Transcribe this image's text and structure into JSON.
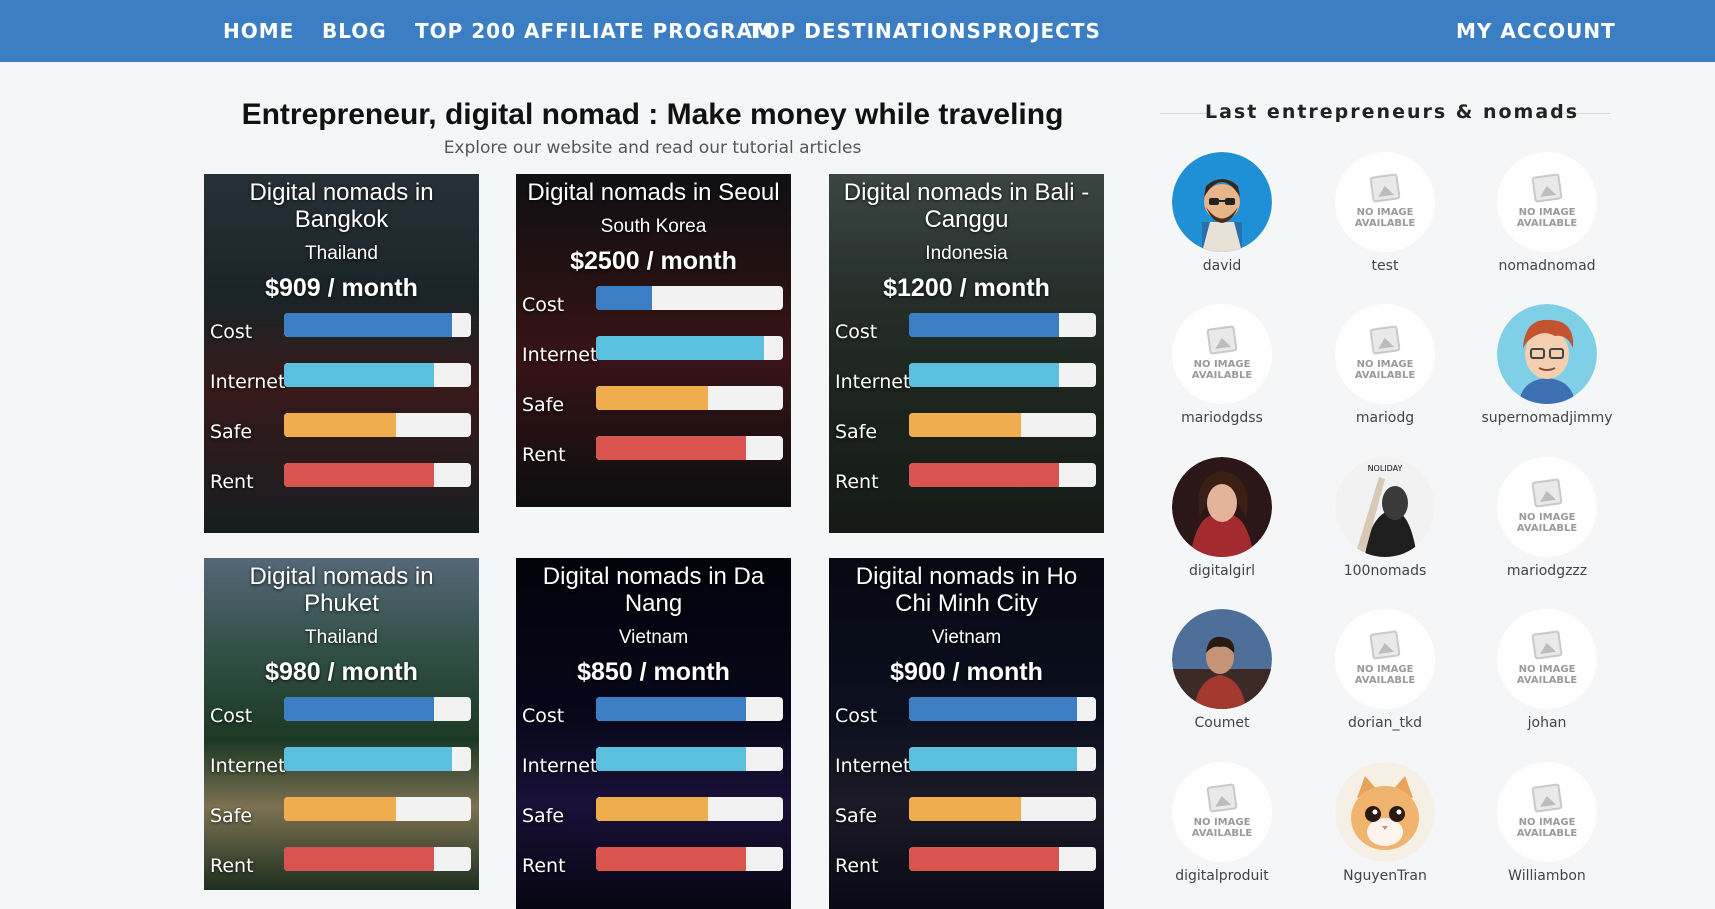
{
  "nav": {
    "items": [
      {
        "label": "HOME"
      },
      {
        "label": "BLOG"
      },
      {
        "label": "TOP 200 AFFILIATE PROGRAM"
      },
      {
        "label": "TOP DESTINATIONS"
      },
      {
        "label": "PROJECTS"
      }
    ],
    "account": "MY ACCOUNT"
  },
  "main": {
    "title": "Entrepreneur, digital nomad : Make money while traveling",
    "subtitle": "Explore our website and read our tutorial articles"
  },
  "colors": {
    "nav": "#3b7ec4",
    "cost": "#3b7ec4",
    "internet": "#5bc0de",
    "safe": "#f0ad4e",
    "rent": "#d9534f"
  },
  "cards": [
    {
      "title": "Digital nomads in Bangkok",
      "country": "Thailand",
      "price": "$909 / month",
      "metrics": [
        {
          "label": "Cost",
          "value": 0.9
        },
        {
          "label": "Internet",
          "value": 0.8
        },
        {
          "label": "Safe",
          "value": 0.6
        },
        {
          "label": "Rent",
          "value": 0.8
        }
      ]
    },
    {
      "title": "Digital nomads in Seoul",
      "country": "South Korea",
      "price": "$2500 / month",
      "metrics": [
        {
          "label": "Cost",
          "value": 0.3
        },
        {
          "label": "Internet",
          "value": 0.9
        },
        {
          "label": "Safe",
          "value": 0.6
        },
        {
          "label": "Rent",
          "value": 0.8
        }
      ]
    },
    {
      "title": "Digital nomads in Bali - Canggu",
      "country": "Indonesia",
      "price": "$1200 / month",
      "metrics": [
        {
          "label": "Cost",
          "value": 0.8
        },
        {
          "label": "Internet",
          "value": 0.8
        },
        {
          "label": "Safe",
          "value": 0.6
        },
        {
          "label": "Rent",
          "value": 0.8
        }
      ]
    },
    {
      "title": "Digital nomads in Phuket",
      "country": "Thailand",
      "price": "$980 / month",
      "metrics": [
        {
          "label": "Cost",
          "value": 0.8
        },
        {
          "label": "Internet",
          "value": 0.9
        },
        {
          "label": "Safe",
          "value": 0.6
        },
        {
          "label": "Rent",
          "value": 0.8
        }
      ]
    },
    {
      "title": "Digital nomads in Da Nang",
      "country": "Vietnam",
      "price": "$850 / month",
      "metrics": [
        {
          "label": "Cost",
          "value": 0.8
        },
        {
          "label": "Internet",
          "value": 0.8
        },
        {
          "label": "Safe",
          "value": 0.6
        },
        {
          "label": "Rent",
          "value": 0.8
        }
      ]
    },
    {
      "title": "Digital nomads in Ho Chi Minh City",
      "country": "Vietnam",
      "price": "$900 / month",
      "metrics": [
        {
          "label": "Cost",
          "value": 0.9
        },
        {
          "label": "Internet",
          "value": 0.9
        },
        {
          "label": "Safe",
          "value": 0.6
        },
        {
          "label": "Rent",
          "value": 0.8
        }
      ]
    }
  ],
  "sidebar": {
    "title": "Last entrepreneurs & nomads",
    "no_image_text": "NO IMAGE AVAILABLE",
    "members": [
      {
        "name": "david",
        "avatar": "cartoon-man-glasses"
      },
      {
        "name": "test",
        "avatar": "no-image"
      },
      {
        "name": "nomadnomad",
        "avatar": "no-image"
      },
      {
        "name": "mariodgdss",
        "avatar": "no-image"
      },
      {
        "name": "mariodg",
        "avatar": "no-image"
      },
      {
        "name": "supernomadjimmy",
        "avatar": "cartoon-red-hair"
      },
      {
        "name": "digitalgirl",
        "avatar": "photo-woman"
      },
      {
        "name": "100nomads",
        "avatar": "photo-man-bw"
      },
      {
        "name": "mariodgzzz",
        "avatar": "no-image"
      },
      {
        "name": "Coumet",
        "avatar": "photo-man-sky"
      },
      {
        "name": "dorian_tkd",
        "avatar": "no-image"
      },
      {
        "name": "johan",
        "avatar": "no-image"
      },
      {
        "name": "digitalproduit",
        "avatar": "no-image"
      },
      {
        "name": "NguyenTran",
        "avatar": "photo-kitten"
      },
      {
        "name": "Williambon",
        "avatar": "no-image"
      }
    ]
  }
}
